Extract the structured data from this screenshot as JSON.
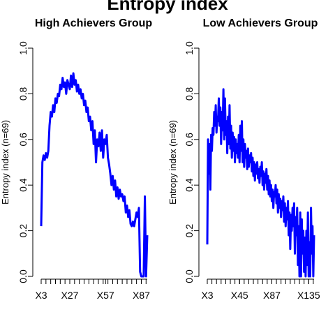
{
  "title": "Entropy index",
  "chart_data": [
    {
      "type": "line",
      "title": "High Achievers Group",
      "ylabel": "Entropy index (n=69)",
      "ylim": [
        0,
        1
      ],
      "yticks": [
        "0.0",
        "0.2",
        "0.4",
        "0.6",
        "0.8",
        "1.0"
      ],
      "xticks": [
        {
          "label": "X3",
          "pos": 1
        },
        {
          "label": "X27",
          "pos": 25
        },
        {
          "label": "X57",
          "pos": 55
        },
        {
          "label": "X87",
          "pos": 85
        }
      ],
      "color": "#0000ff",
      "x": [
        "X3",
        "X4",
        "X5",
        "X6",
        "X7",
        "X8",
        "X9",
        "X10",
        "X11",
        "X12",
        "X13",
        "X14",
        "X15",
        "X16",
        "X17",
        "X18",
        "X19",
        "X20",
        "X21",
        "X22",
        "X23",
        "X24",
        "X25",
        "X26",
        "X27",
        "X28",
        "X29",
        "X30",
        "X31",
        "X32",
        "X33",
        "X34",
        "X35",
        "X36",
        "X37",
        "X38",
        "X39",
        "X40",
        "X41",
        "X42",
        "X43",
        "X44",
        "X45",
        "X46",
        "X47",
        "X48",
        "X49",
        "X50",
        "X51",
        "X52",
        "X53",
        "X54",
        "X55",
        "X56",
        "X57",
        "X58",
        "X59",
        "X60",
        "X61",
        "X62",
        "X63",
        "X64",
        "X65",
        "X66",
        "X67",
        "X68",
        "X69",
        "X70",
        "X71",
        "X72",
        "X73",
        "X74",
        "X75",
        "X76",
        "X77",
        "X78",
        "X79",
        "X80",
        "X81",
        "X82",
        "X83",
        "X84",
        "X85",
        "X86",
        "X87",
        "X88",
        "X89",
        "X90",
        "X91",
        "X92"
      ],
      "values": [
        0.22,
        0.5,
        0.53,
        0.51,
        0.54,
        0.52,
        0.55,
        0.66,
        0.72,
        0.7,
        0.75,
        0.72,
        0.78,
        0.76,
        0.8,
        0.79,
        0.84,
        0.82,
        0.87,
        0.83,
        0.85,
        0.8,
        0.86,
        0.84,
        0.82,
        0.88,
        0.83,
        0.89,
        0.84,
        0.86,
        0.81,
        0.84,
        0.8,
        0.82,
        0.78,
        0.8,
        0.75,
        0.77,
        0.72,
        0.74,
        0.68,
        0.7,
        0.64,
        0.68,
        0.58,
        0.64,
        0.5,
        0.6,
        0.57,
        0.63,
        0.55,
        0.64,
        0.52,
        0.6,
        0.58,
        0.62,
        0.52,
        0.49,
        0.45,
        0.4,
        0.44,
        0.38,
        0.42,
        0.35,
        0.39,
        0.34,
        0.38,
        0.35,
        0.36,
        0.33,
        0.35,
        0.28,
        0.31,
        0.26,
        0.29,
        0.23,
        0.22,
        0.24,
        0.22,
        0.25,
        0.28,
        0.26,
        0.3,
        0.02,
        0.0,
        0.0,
        0.0,
        0.35,
        0.0,
        0.18
      ]
    },
    {
      "type": "line",
      "title": "Low Achievers Group",
      "ylabel": "Entropy index (n=69)",
      "ylim": [
        0,
        1
      ],
      "yticks": [
        "0.0",
        "0.2",
        "0.4",
        "0.6",
        "0.8",
        "1.0"
      ],
      "xticks": [
        {
          "label": "X3",
          "pos": 1
        },
        {
          "label": "X45",
          "pos": 43
        },
        {
          "label": "X87",
          "pos": 85
        },
        {
          "label": "X135",
          "pos": 133
        }
      ],
      "color": "#0000ff",
      "x": [
        "X3",
        "X4",
        "X5",
        "X6",
        "X7",
        "X8",
        "X9",
        "X10",
        "X11",
        "X12",
        "X13",
        "X14",
        "X15",
        "X16",
        "X17",
        "X18",
        "X19",
        "X20",
        "X21",
        "X22",
        "X23",
        "X24",
        "X25",
        "X26",
        "X27",
        "X28",
        "X29",
        "X30",
        "X31",
        "X32",
        "X33",
        "X34",
        "X35",
        "X36",
        "X37",
        "X38",
        "X39",
        "X40",
        "X41",
        "X42",
        "X43",
        "X44",
        "X45",
        "X46",
        "X47",
        "X48",
        "X49",
        "X50",
        "X51",
        "X52",
        "X53",
        "X54",
        "X55",
        "X56",
        "X57",
        "X58",
        "X59",
        "X60",
        "X61",
        "X62",
        "X63",
        "X64",
        "X65",
        "X66",
        "X67",
        "X68",
        "X69",
        "X70",
        "X71",
        "X72",
        "X73",
        "X74",
        "X75",
        "X76",
        "X77",
        "X78",
        "X79",
        "X80",
        "X81",
        "X82",
        "X83",
        "X84",
        "X85",
        "X86",
        "X87",
        "X88",
        "X89",
        "X90",
        "X91",
        "X92",
        "X93",
        "X94",
        "X95",
        "X96",
        "X97",
        "X98",
        "X99",
        "X100",
        "X101",
        "X102",
        "X103",
        "X104",
        "X105",
        "X106",
        "X107",
        "X108",
        "X109",
        "X110",
        "X111",
        "X112",
        "X113",
        "X114",
        "X115",
        "X116",
        "X117",
        "X118",
        "X119",
        "X120",
        "X121",
        "X122",
        "X123",
        "X124",
        "X125",
        "X126",
        "X127",
        "X128",
        "X129",
        "X130",
        "X131",
        "X132",
        "X133",
        "X134",
        "X135",
        "X136",
        "X137",
        "X138",
        "X139",
        "X140",
        "X141",
        "X142"
      ],
      "values": [
        0.14,
        0.6,
        0.45,
        0.58,
        0.38,
        0.62,
        0.55,
        0.65,
        0.62,
        0.72,
        0.66,
        0.75,
        0.63,
        0.7,
        0.68,
        0.78,
        0.66,
        0.74,
        0.58,
        0.72,
        0.64,
        0.82,
        0.6,
        0.78,
        0.62,
        0.68,
        0.54,
        0.7,
        0.58,
        0.75,
        0.56,
        0.66,
        0.52,
        0.63,
        0.55,
        0.61,
        0.5,
        0.6,
        0.54,
        0.58,
        0.52,
        0.62,
        0.5,
        0.66,
        0.55,
        0.68,
        0.5,
        0.6,
        0.48,
        0.58,
        0.52,
        0.55,
        0.47,
        0.56,
        0.48,
        0.53,
        0.5,
        0.54,
        0.46,
        0.52,
        0.44,
        0.5,
        0.42,
        0.49,
        0.45,
        0.5,
        0.43,
        0.47,
        0.41,
        0.48,
        0.44,
        0.5,
        0.4,
        0.46,
        0.38,
        0.45,
        0.41,
        0.47,
        0.38,
        0.44,
        0.36,
        0.42,
        0.35,
        0.4,
        0.33,
        0.38,
        0.3,
        0.37,
        0.35,
        0.4,
        0.32,
        0.38,
        0.28,
        0.36,
        0.3,
        0.34,
        0.26,
        0.33,
        0.29,
        0.35,
        0.24,
        0.32,
        0.22,
        0.3,
        0.25,
        0.33,
        0.18,
        0.28,
        0.12,
        0.27,
        0.2,
        0.3,
        0.22,
        0.32,
        0.1,
        0.26,
        0.18,
        0.3,
        0.05,
        0.22,
        0.0,
        0.28,
        0.0,
        0.25,
        0.1,
        0.2,
        0.02,
        0.17,
        0.0,
        0.2,
        0.05,
        0.28,
        0.0,
        0.15,
        0.0,
        0.3,
        0.1,
        0.22,
        0.0,
        0.18
      ]
    }
  ]
}
